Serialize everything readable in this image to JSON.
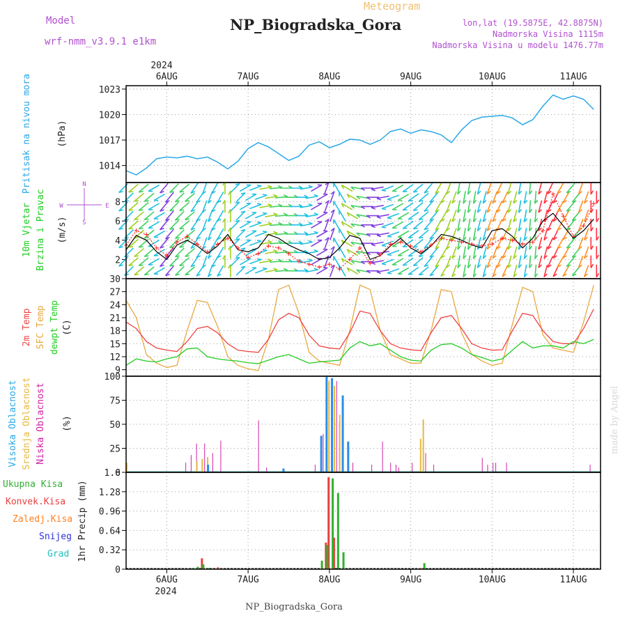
{
  "header": {
    "model_label": "Model",
    "model_name": "wrf-nmm_v3.9.1 e1km",
    "meteogram_label": "Meteogram",
    "station_title": "NP_Biogradska_Gora",
    "coords": "lon,lat (19.5875E, 42.8875N)",
    "elevation": "Nadmorska Visina 1115m",
    "model_elevation": "Nadmorska Visina u modelu 1476.77m",
    "footer_title": "NP_Biogradska_Gora",
    "credit": "made by Angel"
  },
  "time_axis": {
    "year": "2024",
    "days": [
      "6AUG",
      "7AUG",
      "8AUG",
      "9AUG",
      "10AUG",
      "11AUG"
    ]
  },
  "colors": {
    "pressure": "#2aa8e8",
    "temp2m": "#ee4444",
    "sfc": "#e8a840",
    "dewpt": "#22cc22",
    "wind_mean": "#000000",
    "gust": "#ff2222",
    "cloud_high": "#2a8ee8",
    "cloud_mid": "#e8b840",
    "cloud_low": "#d020a0",
    "precip_total": "#30b030",
    "precip_conv": "#e84040",
    "precip_strat": "#ff8020",
    "snow": "#3030e0",
    "hail": "#20c0c0",
    "label_purple": "#b050d0",
    "meteogram_label": "#f0c070"
  },
  "panel_labels": {
    "pressure": [
      "Pritisak na nivou mora",
      "(hPa)"
    ],
    "wind": [
      "10m Vjetar",
      "Brzina i Pravac",
      "(m/s)"
    ],
    "wind_compass": [
      "N",
      "S",
      "W",
      "E"
    ],
    "temp": [
      "2m Temp",
      "SFC Temp",
      "dewpt Temp",
      "(C)"
    ],
    "cloud": [
      "Visoka Oblacnost",
      "Srednja Oblacnost",
      "Niska Oblacnost",
      "(%)"
    ],
    "precip": [
      "Ukupna Kisa",
      "Konvek.Kisa",
      "Zaledj.Kisa",
      "Snijeg",
      "Grad",
      "1hr Precip (mm)"
    ]
  },
  "chart_data": [
    {
      "type": "line",
      "name": "pressure",
      "ylim": [
        1012,
        1023.4
      ],
      "yticks": [
        "1014",
        "1017",
        "1020",
        "1023"
      ],
      "x_hours": [
        0,
        3,
        6,
        9,
        12,
        15,
        18,
        21,
        24,
        27,
        30,
        33,
        36,
        39,
        42,
        45,
        48,
        51,
        54,
        57,
        60,
        63,
        66,
        69,
        72,
        75,
        78,
        81,
        84,
        87,
        90,
        93,
        96,
        99,
        102,
        105,
        108,
        111,
        114,
        117,
        120,
        123,
        126,
        129,
        132,
        135,
        138
      ],
      "y": [
        1013.4,
        1012.9,
        1013.7,
        1014.8,
        1015.0,
        1014.9,
        1015.1,
        1014.8,
        1015.0,
        1014.4,
        1013.6,
        1014.5,
        1016.0,
        1016.7,
        1016.2,
        1015.4,
        1014.6,
        1015.1,
        1016.4,
        1016.8,
        1016.1,
        1016.5,
        1017.1,
        1017.0,
        1016.5,
        1017.0,
        1018.0,
        1018.3,
        1017.8,
        1018.2,
        1018.0,
        1017.6,
        1016.7,
        1018.2,
        1019.3,
        1019.7,
        1019.8,
        1019.9,
        1019.6,
        1018.8,
        1019.4,
        1021.0,
        1022.3,
        1021.8,
        1022.2,
        1021.8,
        1020.6
      ]
    },
    {
      "type": "line",
      "name": "wind",
      "ylim": [
        0,
        10
      ],
      "yticks": [
        "2",
        "4",
        "6",
        "8"
      ],
      "x_hours": [
        0,
        3,
        6,
        9,
        12,
        15,
        18,
        21,
        24,
        27,
        30,
        33,
        36,
        39,
        42,
        45,
        48,
        51,
        54,
        57,
        60,
        63,
        66,
        69,
        72,
        75,
        78,
        81,
        84,
        87,
        90,
        93,
        96,
        99,
        102,
        105,
        108,
        111,
        114,
        117,
        120,
        123,
        126,
        129,
        132,
        135,
        138
      ],
      "mean": [
        3.0,
        4.5,
        4.0,
        2.8,
        2.0,
        3.5,
        4.0,
        3.4,
        2.6,
        3.4,
        4.6,
        3.0,
        2.8,
        3.2,
        4.6,
        4.2,
        3.5,
        3.0,
        2.6,
        2.0,
        2.2,
        3.2,
        4.5,
        4.2,
        2.0,
        2.4,
        3.4,
        4.2,
        3.2,
        2.6,
        3.4,
        4.6,
        4.4,
        4.0,
        3.5,
        3.2,
        5.0,
        5.2,
        4.4,
        3.2,
        4.2,
        6.0,
        6.8,
        5.5,
        4.2,
        5.0,
        6.2
      ],
      "gust": [
        3.5,
        5.0,
        4.6,
        3.2,
        2.4,
        3.8,
        4.4,
        3.6,
        2.8,
        3.6,
        4.2,
        3.2,
        2.2,
        2.6,
        3.4,
        3.2,
        2.6,
        1.8,
        1.5,
        1.2,
        1.5,
        1.0,
        2.0,
        3.2,
        1.6,
        2.5,
        3.6,
        3.8,
        3.4,
        2.8,
        3.5,
        4.2,
        4.0,
        3.8,
        3.6,
        3.4,
        3.6,
        4.2,
        4.0,
        3.6,
        3.8,
        5.0,
        8.8,
        6.5,
        4.4,
        5.5,
        7.8
      ],
      "direction_deg": [
        225,
        230,
        230,
        240,
        220,
        225,
        230,
        215,
        200,
        210,
        0,
        45,
        60,
        70,
        80,
        85,
        90,
        90,
        80,
        60,
        20,
        330,
        300,
        280,
        270,
        260,
        250,
        240,
        235,
        230,
        220,
        210,
        200,
        190,
        190,
        195,
        200,
        205,
        195,
        190,
        185,
        195,
        205,
        210,
        220,
        200,
        180
      ]
    },
    {
      "type": "line",
      "name": "temperature",
      "ylim": [
        7.5,
        30
      ],
      "yticks": [
        "9",
        "12",
        "15",
        "18",
        "21",
        "24",
        "27",
        "30"
      ],
      "x_hours": [
        0,
        3,
        6,
        9,
        12,
        15,
        18,
        21,
        24,
        27,
        30,
        33,
        36,
        39,
        42,
        45,
        48,
        51,
        54,
        57,
        60,
        63,
        66,
        69,
        72,
        75,
        78,
        81,
        84,
        87,
        90,
        93,
        96,
        99,
        102,
        105,
        108,
        111,
        114,
        117,
        120,
        123,
        126,
        129,
        132,
        135,
        138
      ],
      "t2m": [
        20.0,
        18.5,
        15.5,
        14.0,
        13.5,
        13.2,
        15.5,
        18.5,
        19.0,
        17.5,
        15.0,
        13.5,
        13.2,
        13.0,
        16.0,
        20.5,
        22.0,
        21.0,
        17.0,
        14.5,
        14.0,
        13.8,
        17.5,
        22.5,
        22.0,
        18.0,
        15.0,
        14.0,
        13.6,
        13.4,
        17.5,
        21.0,
        21.5,
        18.5,
        15.0,
        14.0,
        13.5,
        13.6,
        18.0,
        22.0,
        21.5,
        18.0,
        15.5,
        15.0,
        15.0,
        18.5,
        23.0
      ],
      "sfc": [
        25.0,
        21.0,
        12.5,
        10.5,
        9.5,
        10.0,
        18.0,
        25.0,
        24.5,
        19.0,
        12.0,
        10.0,
        9.2,
        8.8,
        16.0,
        27.5,
        28.5,
        22.0,
        13.0,
        11.0,
        10.5,
        10.0,
        18.0,
        28.5,
        27.5,
        18.0,
        12.5,
        11.5,
        10.5,
        10.5,
        18.0,
        27.5,
        27.0,
        17.5,
        12.5,
        11.0,
        10.0,
        10.5,
        19.5,
        28.0,
        27.0,
        17.0,
        14.0,
        13.5,
        13.0,
        20.0,
        28.5
      ],
      "dewpt": [
        10.0,
        11.5,
        11.0,
        10.8,
        11.5,
        12.0,
        13.8,
        14.0,
        12.0,
        11.5,
        11.2,
        11.0,
        10.6,
        10.4,
        11.2,
        12.0,
        12.5,
        11.5,
        10.5,
        10.8,
        11.0,
        11.2,
        14.0,
        15.5,
        14.5,
        15.0,
        13.5,
        12.0,
        11.2,
        11.0,
        13.5,
        14.8,
        15.0,
        14.0,
        12.5,
        11.8,
        11.0,
        11.5,
        13.5,
        15.5,
        14.0,
        14.5,
        14.5,
        14.0,
        15.5,
        15.0,
        16.0
      ]
    },
    {
      "type": "bar",
      "name": "cloud",
      "ylim": [
        0,
        100
      ],
      "yticks": [
        "0",
        "25",
        "50",
        "75",
        "100"
      ],
      "high": [
        [
          72,
          38
        ],
        [
          74,
          100
        ],
        [
          76,
          98
        ],
        [
          80,
          80
        ],
        [
          82,
          32
        ],
        [
          30,
          8
        ],
        [
          58,
          4
        ]
      ],
      "mid": [
        [
          0,
          10
        ],
        [
          26,
          12
        ],
        [
          28,
          14
        ],
        [
          30,
          16
        ],
        [
          75,
          95
        ],
        [
          77,
          90
        ],
        [
          79,
          60
        ],
        [
          110,
          55
        ],
        [
          109,
          35
        ]
      ],
      "low": [
        [
          22,
          10
        ],
        [
          24,
          18
        ],
        [
          26,
          30
        ],
        [
          29,
          30
        ],
        [
          32,
          20
        ],
        [
          35,
          33
        ],
        [
          49,
          54
        ],
        [
          52,
          5
        ],
        [
          70,
          8
        ],
        [
          73,
          40
        ],
        [
          78,
          95
        ],
        [
          79,
          52
        ],
        [
          84,
          10
        ],
        [
          91,
          8
        ],
        [
          95,
          32
        ],
        [
          98,
          10
        ],
        [
          100,
          8
        ],
        [
          101,
          5
        ],
        [
          106,
          10
        ],
        [
          111,
          20
        ],
        [
          114,
          8
        ],
        [
          132,
          15
        ],
        [
          134,
          8
        ],
        [
          136,
          10
        ],
        [
          137,
          10
        ],
        [
          141,
          10
        ],
        [
          172,
          8
        ]
      ]
    },
    {
      "type": "bar",
      "name": "precipitation",
      "ylim": [
        0,
        1.6
      ],
      "yticks": [
        "0",
        "0.32",
        "0.64",
        "0.96",
        "1.28",
        "1.6"
      ],
      "total": [
        [
          24,
          0.02
        ],
        [
          26,
          0.04
        ],
        [
          28,
          0.08
        ],
        [
          30,
          0.02
        ],
        [
          72,
          0.14
        ],
        [
          74,
          0.4
        ],
        [
          76,
          1.5
        ],
        [
          78,
          1.26
        ],
        [
          80,
          0.28
        ],
        [
          110,
          0.1
        ]
      ],
      "convective": [
        [
          28,
          0.18
        ],
        [
          34,
          0.03
        ],
        [
          74,
          0.44
        ],
        [
          75,
          1.52
        ],
        [
          77,
          0.52
        ],
        [
          109,
          0.02
        ]
      ]
    }
  ]
}
